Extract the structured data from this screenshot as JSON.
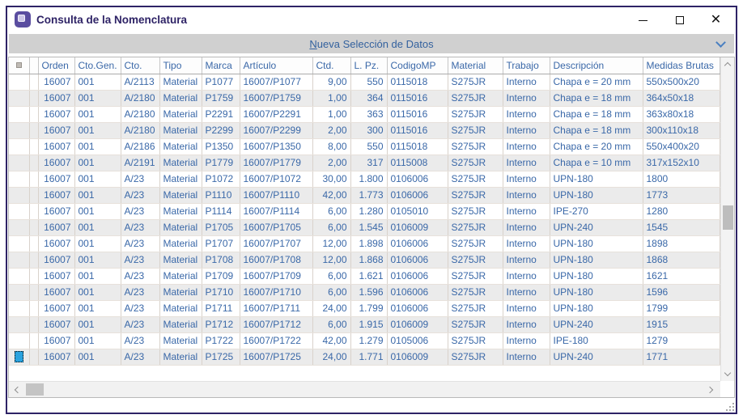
{
  "window": {
    "title": "Consulta de la Nomenclatura",
    "controls": [
      {
        "name": "minimize"
      },
      {
        "name": "maximize"
      },
      {
        "name": "close"
      }
    ]
  },
  "toolbar": {
    "label_accel": "N",
    "label_rest": "ueva Selección de Datos"
  },
  "grid": {
    "columns": [
      {
        "label": "",
        "align": "center"
      },
      {
        "label": "",
        "align": "center"
      },
      {
        "label": "Orden",
        "align": "right"
      },
      {
        "label": "Cto.Gen.",
        "align": "left"
      },
      {
        "label": "Cto.",
        "align": "left"
      },
      {
        "label": "Tipo",
        "align": "left"
      },
      {
        "label": "Marca",
        "align": "left"
      },
      {
        "label": "Artículo",
        "align": "left"
      },
      {
        "label": "Ctd.",
        "align": "right"
      },
      {
        "label": "L. Pz.",
        "align": "right"
      },
      {
        "label": "CodigoMP",
        "align": "left"
      },
      {
        "label": "Material",
        "align": "left"
      },
      {
        "label": "Trabajo",
        "align": "left"
      },
      {
        "label": "Descripción",
        "align": "left"
      },
      {
        "label": "Medidas Brutas",
        "align": "left"
      }
    ],
    "rows": [
      [
        "16007",
        "001",
        "A/2113",
        "Material",
        "P1077",
        "16007/P1077",
        "9,00",
        "550",
        "0115018",
        "S275JR",
        "Interno",
        "Chapa e = 20 mm",
        "550x500x20"
      ],
      [
        "16007",
        "001",
        "A/2180",
        "Material",
        "P1759",
        "16007/P1759",
        "1,00",
        "364",
        "0115016",
        "S275JR",
        "Interno",
        "Chapa e = 18 mm",
        "364x50x18"
      ],
      [
        "16007",
        "001",
        "A/2180",
        "Material",
        "P2291",
        "16007/P2291",
        "1,00",
        "363",
        "0115016",
        "S275JR",
        "Interno",
        "Chapa e = 18 mm",
        "363x80x18"
      ],
      [
        "16007",
        "001",
        "A/2180",
        "Material",
        "P2299",
        "16007/P2299",
        "2,00",
        "300",
        "0115016",
        "S275JR",
        "Interno",
        "Chapa e = 18 mm",
        "300x110x18"
      ],
      [
        "16007",
        "001",
        "A/2186",
        "Material",
        "P1350",
        "16007/P1350",
        "8,00",
        "550",
        "0115018",
        "S275JR",
        "Interno",
        "Chapa e = 20 mm",
        "550x400x20"
      ],
      [
        "16007",
        "001",
        "A/2191",
        "Material",
        "P1779",
        "16007/P1779",
        "2,00",
        "317",
        "0115008",
        "S275JR",
        "Interno",
        "Chapa e = 10 mm",
        "317x152x10"
      ],
      [
        "16007",
        "001",
        "A/23",
        "Material",
        "P1072",
        "16007/P1072",
        "30,00",
        "1.800",
        "0106006",
        "S275JR",
        "Interno",
        "UPN-180",
        "1800"
      ],
      [
        "16007",
        "001",
        "A/23",
        "Material",
        "P1110",
        "16007/P1110",
        "42,00",
        "1.773",
        "0106006",
        "S275JR",
        "Interno",
        "UPN-180",
        "1773"
      ],
      [
        "16007",
        "001",
        "A/23",
        "Material",
        "P1114",
        "16007/P1114",
        "6,00",
        "1.280",
        "0105010",
        "S275JR",
        "Interno",
        "IPE-270",
        "1280"
      ],
      [
        "16007",
        "001",
        "A/23",
        "Material",
        "P1705",
        "16007/P1705",
        "6,00",
        "1.545",
        "0106009",
        "S275JR",
        "Interno",
        "UPN-240",
        "1545"
      ],
      [
        "16007",
        "001",
        "A/23",
        "Material",
        "P1707",
        "16007/P1707",
        "12,00",
        "1.898",
        "0106006",
        "S275JR",
        "Interno",
        "UPN-180",
        "1898"
      ],
      [
        "16007",
        "001",
        "A/23",
        "Material",
        "P1708",
        "16007/P1708",
        "12,00",
        "1.868",
        "0106006",
        "S275JR",
        "Interno",
        "UPN-180",
        "1868"
      ],
      [
        "16007",
        "001",
        "A/23",
        "Material",
        "P1709",
        "16007/P1709",
        "6,00",
        "1.621",
        "0106006",
        "S275JR",
        "Interno",
        "UPN-180",
        "1621"
      ],
      [
        "16007",
        "001",
        "A/23",
        "Material",
        "P1710",
        "16007/P1710",
        "6,00",
        "1.596",
        "0106006",
        "S275JR",
        "Interno",
        "UPN-180",
        "1596"
      ],
      [
        "16007",
        "001",
        "A/23",
        "Material",
        "P1711",
        "16007/P1711",
        "24,00",
        "1.799",
        "0106006",
        "S275JR",
        "Interno",
        "UPN-180",
        "1799"
      ],
      [
        "16007",
        "001",
        "A/23",
        "Material",
        "P1712",
        "16007/P1712",
        "6,00",
        "1.915",
        "0106009",
        "S275JR",
        "Interno",
        "UPN-240",
        "1915"
      ],
      [
        "16007",
        "001",
        "A/23",
        "Material",
        "P1722",
        "16007/P1722",
        "42,00",
        "1.279",
        "0105006",
        "S275JR",
        "Interno",
        "IPE-180",
        "1279"
      ],
      [
        "16007",
        "001",
        "A/23",
        "Material",
        "P1725",
        "16007/P1725",
        "24,00",
        "1.771",
        "0106009",
        "S275JR",
        "Interno",
        "UPN-240",
        "1771"
      ]
    ],
    "selected_row_index": 17
  },
  "colors": {
    "title_purple": "#2e2366",
    "accent_blue": "#3a68a8",
    "selection_blue": "#2aa2de",
    "toolbar_bg": "#d0d0d0",
    "stripe_gray": "#ebebeb"
  }
}
